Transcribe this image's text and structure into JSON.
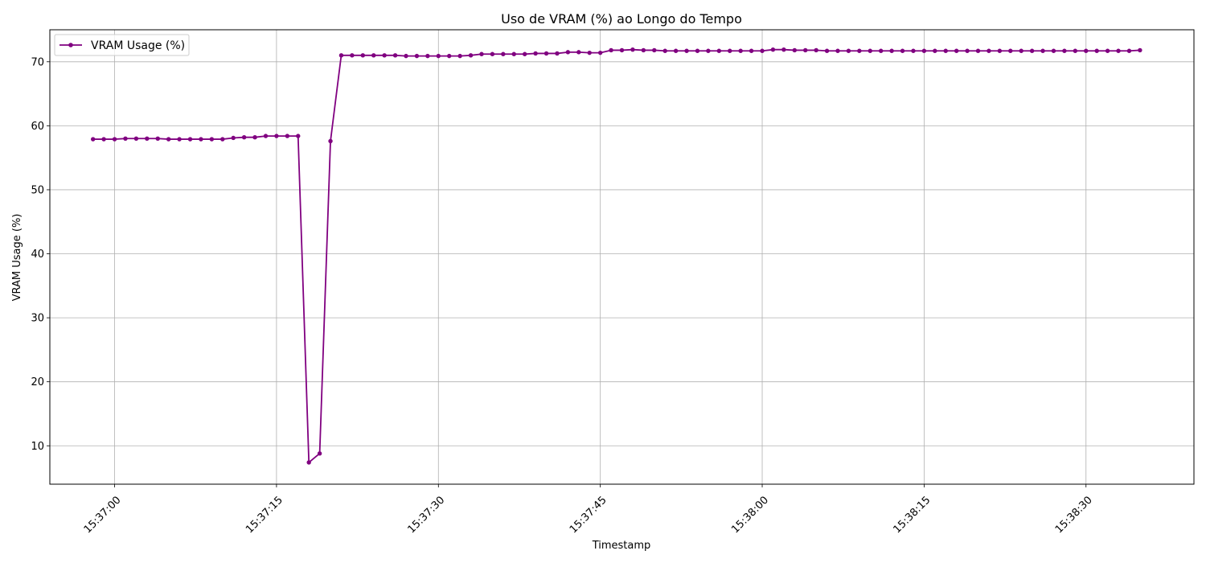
{
  "chart_data": {
    "type": "line",
    "title": "Uso de VRAM (%) ao Longo do Tempo",
    "xlabel": "Timestamp",
    "ylabel": "VRAM Usage (%)",
    "grid": true,
    "legend_position": "top-left",
    "ylim": [
      4,
      75
    ],
    "yticks": [
      10,
      20,
      30,
      40,
      50,
      60,
      70
    ],
    "xlim": [
      "15:36:54",
      "15:38:40"
    ],
    "xticks": [
      "15:37:00",
      "15:37:15",
      "15:37:30",
      "15:37:45",
      "15:38:00",
      "15:38:15",
      "15:38:30"
    ],
    "series": [
      {
        "name": "VRAM Usage (%)",
        "color": "#800080",
        "marker": "circle",
        "x": [
          "15:36:58",
          "15:36:59",
          "15:37:00",
          "15:37:01",
          "15:37:02",
          "15:37:03",
          "15:37:04",
          "15:37:05",
          "15:37:06",
          "15:37:07",
          "15:37:08",
          "15:37:09",
          "15:37:10",
          "15:37:11",
          "15:37:12",
          "15:37:13",
          "15:37:14",
          "15:37:15",
          "15:37:16",
          "15:37:17",
          "15:37:18",
          "15:37:19",
          "15:37:20",
          "15:37:21",
          "15:37:22",
          "15:37:23",
          "15:37:24",
          "15:37:25",
          "15:37:26",
          "15:37:27",
          "15:37:28",
          "15:37:29",
          "15:37:30",
          "15:37:31",
          "15:37:32",
          "15:37:33",
          "15:37:34",
          "15:37:35",
          "15:37:36",
          "15:37:37",
          "15:37:38",
          "15:37:39",
          "15:37:40",
          "15:37:41",
          "15:37:42",
          "15:37:43",
          "15:37:44",
          "15:37:45",
          "15:37:46",
          "15:37:47",
          "15:37:48",
          "15:37:49",
          "15:37:50",
          "15:37:51",
          "15:37:52",
          "15:37:53",
          "15:37:54",
          "15:37:55",
          "15:37:56",
          "15:37:57",
          "15:37:58",
          "15:37:59",
          "15:38:00",
          "15:38:01",
          "15:38:02",
          "15:38:03",
          "15:38:04",
          "15:38:05",
          "15:38:06",
          "15:38:07",
          "15:38:08",
          "15:38:09",
          "15:38:10",
          "15:38:11",
          "15:38:12",
          "15:38:13",
          "15:38:14",
          "15:38:15",
          "15:38:16",
          "15:38:17",
          "15:38:18",
          "15:38:19",
          "15:38:20",
          "15:38:21",
          "15:38:22",
          "15:38:23",
          "15:38:24",
          "15:38:25",
          "15:38:26",
          "15:38:27",
          "15:38:28",
          "15:38:29",
          "15:38:30",
          "15:38:31",
          "15:38:32",
          "15:38:33",
          "15:38:34",
          "15:38:35"
        ],
        "values": [
          57.9,
          57.9,
          57.9,
          58.0,
          58.0,
          58.0,
          58.0,
          57.9,
          57.9,
          57.9,
          57.9,
          57.9,
          57.9,
          58.1,
          58.2,
          58.2,
          58.4,
          58.4,
          58.4,
          58.4,
          7.4,
          8.8,
          57.6,
          71.0,
          71.0,
          71.0,
          71.0,
          71.0,
          71.0,
          70.9,
          70.9,
          70.9,
          70.9,
          70.9,
          70.9,
          71.0,
          71.2,
          71.2,
          71.2,
          71.2,
          71.2,
          71.3,
          71.3,
          71.3,
          71.5,
          71.5,
          71.4,
          71.4,
          71.8,
          71.8,
          71.9,
          71.8,
          71.8,
          71.7,
          71.7,
          71.7,
          71.7,
          71.7,
          71.7,
          71.7,
          71.7,
          71.7,
          71.7,
          71.9,
          71.9,
          71.8,
          71.8,
          71.8,
          71.7,
          71.7,
          71.7,
          71.7,
          71.7,
          71.7,
          71.7,
          71.7,
          71.7,
          71.7,
          71.7,
          71.7,
          71.7,
          71.7,
          71.7,
          71.7,
          71.7,
          71.7,
          71.7,
          71.7,
          71.7,
          71.7,
          71.7,
          71.7,
          71.7,
          71.7,
          71.7,
          71.7,
          71.7,
          71.8
        ]
      }
    ]
  }
}
